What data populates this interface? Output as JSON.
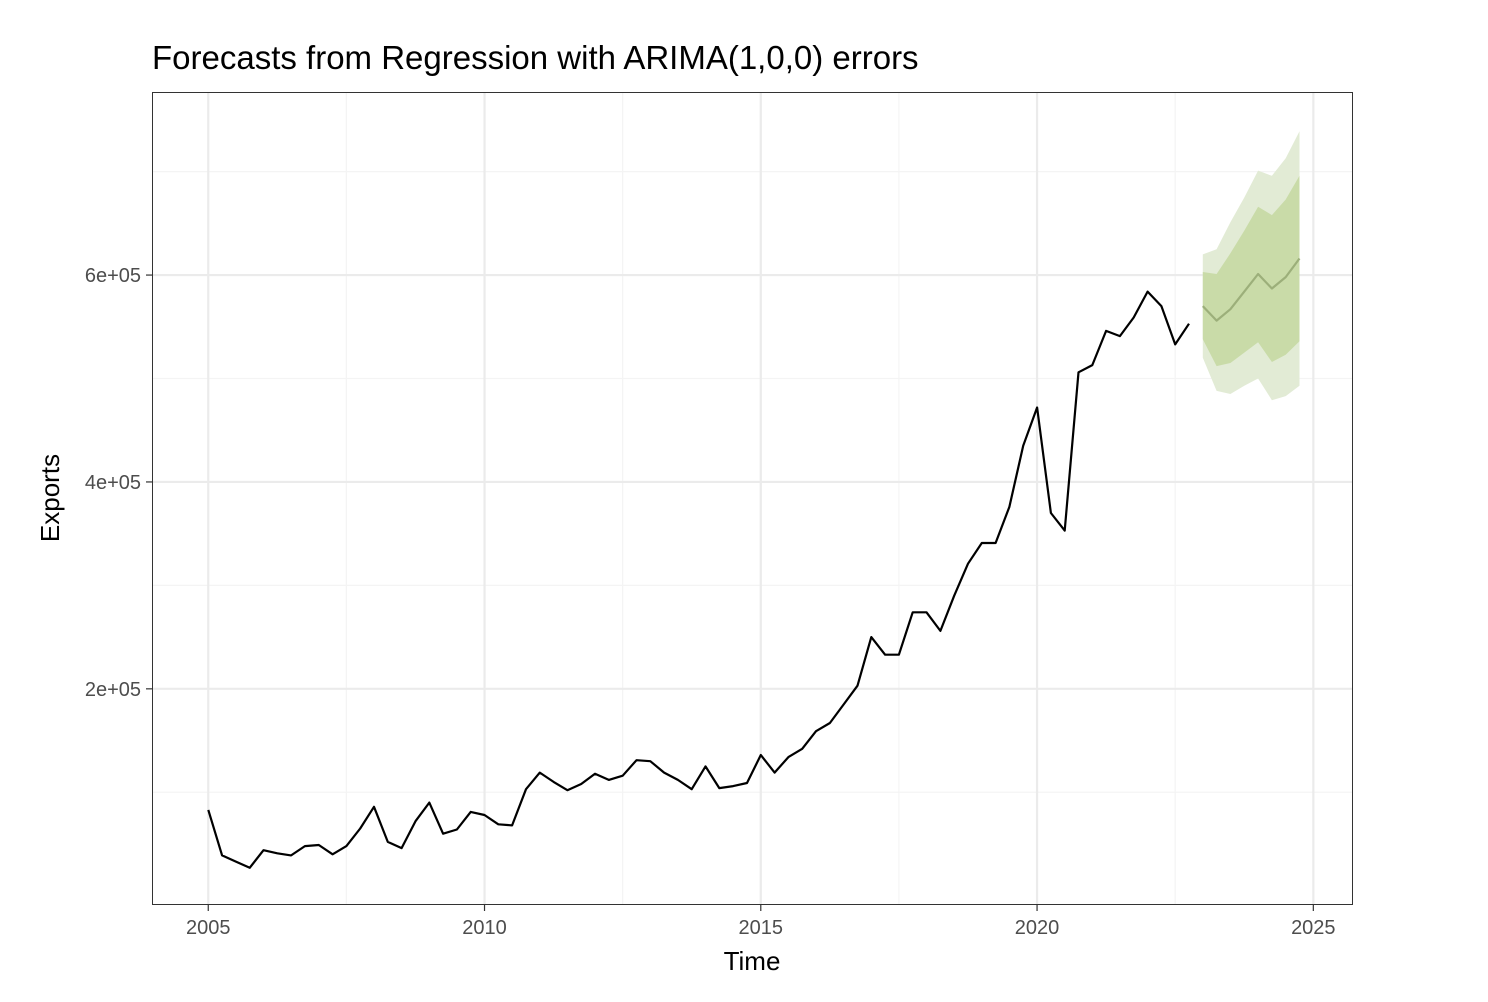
{
  "chart_data": {
    "type": "line",
    "title": "Forecasts from Regression with ARIMA(1,0,0) errors",
    "xlabel": "Time",
    "ylabel": "Exports",
    "xlim": [
      2004.0,
      2025.7
    ],
    "ylim": [
      -8000,
      776000
    ],
    "x_ticks": [
      2005,
      2010,
      2015,
      2020,
      2025
    ],
    "x_tick_labels": [
      "2005",
      "2010",
      "2015",
      "2020",
      "2025"
    ],
    "y_ticks": [
      200000,
      400000,
      600000
    ],
    "y_tick_labels": [
      "2e+05",
      "4e+05",
      "6e+05"
    ],
    "grid": true,
    "colors": {
      "series": "#000000",
      "forecast_line": "#9caf7a",
      "band80": "#c9dba8",
      "band95": "#e2ebd5",
      "grid_major": "#ebebeb",
      "grid_minor": "#f4f4f4",
      "panel_border": "#333333"
    },
    "series": [
      {
        "x": [
          2005.0,
          2005.25,
          2005.5,
          2005.75,
          2006.0,
          2006.25,
          2006.5,
          2006.75,
          2007.0,
          2007.25,
          2007.5,
          2007.75,
          2008.0,
          2008.25,
          2008.5,
          2008.75,
          2009.0,
          2009.25,
          2009.5,
          2009.75,
          2010.0,
          2010.25,
          2010.5,
          2010.75,
          2011.0,
          2011.25,
          2011.5,
          2011.75,
          2012.0,
          2012.25,
          2012.5,
          2012.75,
          2013.0,
          2013.25,
          2013.5,
          2013.75,
          2014.0,
          2014.25,
          2014.5,
          2014.75,
          2015.0,
          2015.25,
          2015.5,
          2015.75,
          2016.0,
          2016.25,
          2016.5,
          2016.75,
          2017.0,
          2017.25,
          2017.5,
          2017.75,
          2018.0,
          2018.25,
          2018.5,
          2018.75,
          2019.0,
          2019.25,
          2019.5,
          2019.75,
          2020.0,
          2020.25,
          2020.5,
          2020.75,
          2021.0,
          2021.25,
          2021.5,
          2021.75,
          2022.0,
          2022.25,
          2022.5,
          2022.75
        ],
        "values": [
          83000,
          39000,
          33000,
          27000,
          44000,
          41000,
          39000,
          48000,
          49000,
          40000,
          48000,
          65000,
          86000,
          52000,
          46000,
          72000,
          90000,
          60000,
          64000,
          81000,
          78000,
          69000,
          68000,
          103000,
          119000,
          110000,
          102000,
          108000,
          118000,
          112000,
          116000,
          131000,
          130000,
          119000,
          112000,
          103000,
          125000,
          104000,
          106000,
          109000,
          136000,
          119000,
          134000,
          142000,
          159000,
          167000,
          185000,
          203000,
          250000,
          233000,
          233000,
          274000,
          274000,
          256000,
          290000,
          321000,
          341000,
          341000,
          376000,
          435000,
          472000,
          370000,
          353000,
          506000,
          513000,
          546000,
          541000,
          559000,
          584000,
          570000,
          533000,
          553000
        ]
      },
      {
        "name": "forecast",
        "x": [
          2023.0,
          2023.25,
          2023.5,
          2023.75,
          2024.0,
          2024.25,
          2024.5,
          2024.75
        ],
        "values": [
          570000,
          556000,
          567000,
          584000,
          601000,
          587000,
          598000,
          616000
        ],
        "lo80": [
          538000,
          512000,
          515000,
          525000,
          535000,
          516000,
          523000,
          536000
        ],
        "hi80": [
          603000,
          601000,
          621000,
          643000,
          666000,
          658000,
          673000,
          696000
        ],
        "lo95": [
          520000,
          488000,
          485000,
          493000,
          500000,
          479000,
          483000,
          493000
        ],
        "hi95": [
          620000,
          625000,
          651000,
          675000,
          701000,
          696000,
          713000,
          739000
        ]
      }
    ]
  }
}
